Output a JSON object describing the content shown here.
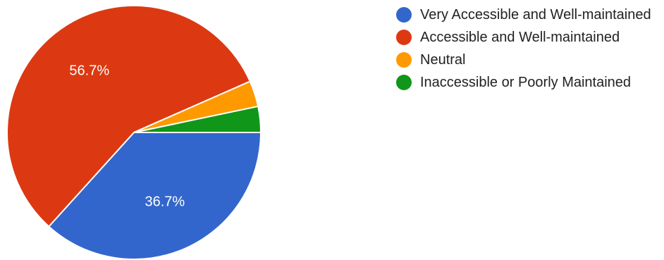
{
  "chart_data": {
    "type": "pie",
    "title": "",
    "legend_position": "right",
    "slices": [
      {
        "name": "Very Accessible and Well-maintained",
        "value": 36.7,
        "label": "36.7%",
        "color": "#3366cc"
      },
      {
        "name": "Accessible and Well-maintained",
        "value": 56.7,
        "label": "56.7%",
        "color": "#dc3912"
      },
      {
        "name": "Neutral",
        "value": 3.3,
        "label": "",
        "color": "#ff9900"
      },
      {
        "name": "Inaccessible or Poorly Maintained",
        "value": 3.3,
        "label": "",
        "color": "#109618"
      }
    ]
  }
}
